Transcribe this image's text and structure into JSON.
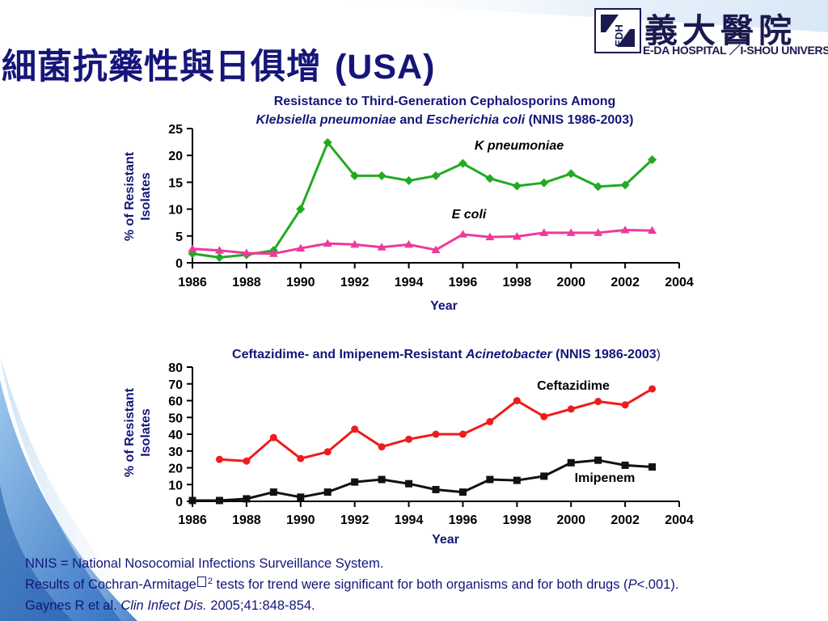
{
  "slide": {
    "title_cn": "細菌抗藥性與日俱增",
    "title_en": "(USA)",
    "logo": {
      "text_cn": "義大醫院",
      "text_en": "E-DA HOSPITAL ／I-SHOU UNIVERSITY",
      "mark": "EDH"
    }
  },
  "colors": {
    "title": "#15157a",
    "k_pneumoniae": "#22aa22",
    "e_coli": "#ee3a9c",
    "ceftazidime": "#ee1c1c",
    "imipenem": "#111111",
    "swoosh": "#5e9dd6"
  },
  "chart_data": [
    {
      "type": "line",
      "title_line1": "Resistance to Third-Generation Cephalosporins Among",
      "title_line2_parts": [
        "Klebsiella pneumoniae",
        " and ",
        "Escherichia coli",
        " (NNIS 1986-2003)"
      ],
      "xlabel": "Year",
      "ylabel": [
        "% of Resistant",
        "Isolates"
      ],
      "xlim": [
        1986,
        2004
      ],
      "ylim": [
        0,
        25
      ],
      "xticks": [
        "1986",
        "1988",
        "1990",
        "1992",
        "1994",
        "1996",
        "1998",
        "2000",
        "2002",
        "2004"
      ],
      "yticks": [
        "0",
        "5",
        "10",
        "15",
        "20",
        "25"
      ],
      "x": [
        1986,
        1987,
        1988,
        1989,
        1990,
        1991,
        1992,
        1993,
        1994,
        1995,
        1996,
        1997,
        1998,
        1999,
        2000,
        2001,
        2002,
        2003
      ],
      "series": [
        {
          "name": "K pneumoniae",
          "marker": "diamond",
          "values": [
            1.7,
            1.0,
            1.5,
            2.3,
            10.0,
            22.4,
            16.2,
            16.2,
            15.3,
            16.2,
            18.5,
            15.7,
            14.3,
            14.9,
            16.6,
            14.2,
            14.5,
            19.2
          ]
        },
        {
          "name": "E coli",
          "marker": "triangle",
          "values": [
            2.6,
            2.3,
            1.8,
            1.7,
            2.7,
            3.6,
            3.4,
            2.9,
            3.4,
            2.4,
            5.3,
            4.8,
            4.9,
            5.6,
            5.6,
            5.6,
            6.1,
            6.0
          ]
        }
      ],
      "grid": false,
      "legend": "inline labels"
    },
    {
      "type": "line",
      "title_parts": [
        "Ceftazidime- and Imipenem-Resistant ",
        "Acinetobacter",
        " (NNIS 1986-2003",
        ")"
      ],
      "xlabel": "Year",
      "ylabel": [
        "% of Resistant",
        "Isolates"
      ],
      "xlim": [
        1986,
        2004
      ],
      "ylim": [
        0,
        80
      ],
      "xticks": [
        "1986",
        "1988",
        "1990",
        "1992",
        "1994",
        "1996",
        "1998",
        "2000",
        "2002",
        "2004"
      ],
      "yticks": [
        "0",
        "10",
        "20",
        "30",
        "40",
        "50",
        "60",
        "70",
        "80"
      ],
      "series": [
        {
          "name": "Ceftazidime",
          "marker": "circle",
          "x": [
            1987,
            1988,
            1989,
            1990,
            1991,
            1992,
            1993,
            1994,
            1995,
            1996,
            1997,
            1998,
            1999,
            2000,
            2001,
            2002,
            2003
          ],
          "values": [
            25,
            24,
            38,
            25.5,
            29.5,
            43,
            32.5,
            37,
            40,
            40,
            47.5,
            60,
            50.5,
            55,
            59.5,
            57.5,
            67
          ]
        },
        {
          "name": "Imipenem",
          "marker": "square",
          "x": [
            1986,
            1987,
            1988,
            1989,
            1990,
            1991,
            1992,
            1993,
            1994,
            1995,
            1996,
            1997,
            1998,
            1999,
            2000,
            2001,
            2002,
            2003
          ],
          "values": [
            0.5,
            0.5,
            1.5,
            5.5,
            2.5,
            5.5,
            11.5,
            13,
            10.5,
            7,
            5.5,
            13,
            12.5,
            15,
            23,
            24.5,
            21.5,
            20.5
          ]
        }
      ],
      "grid": false,
      "legend": "inline labels"
    }
  ],
  "footnotes": {
    "line1": "NNIS = National Nosocomial Infections Surveillance System.",
    "line2_a": "Results of Cochran-Armitage",
    "line2_sup": "2",
    "line2_b": " tests for trend were significant for both organisms and for both drugs (",
    "line2_p": "P",
    "line2_c": "<.001).",
    "cite_a": "Gaynes R et al. ",
    "cite_journal": "Clin Infect Dis.",
    "cite_b": " 2005;41:848-854."
  }
}
